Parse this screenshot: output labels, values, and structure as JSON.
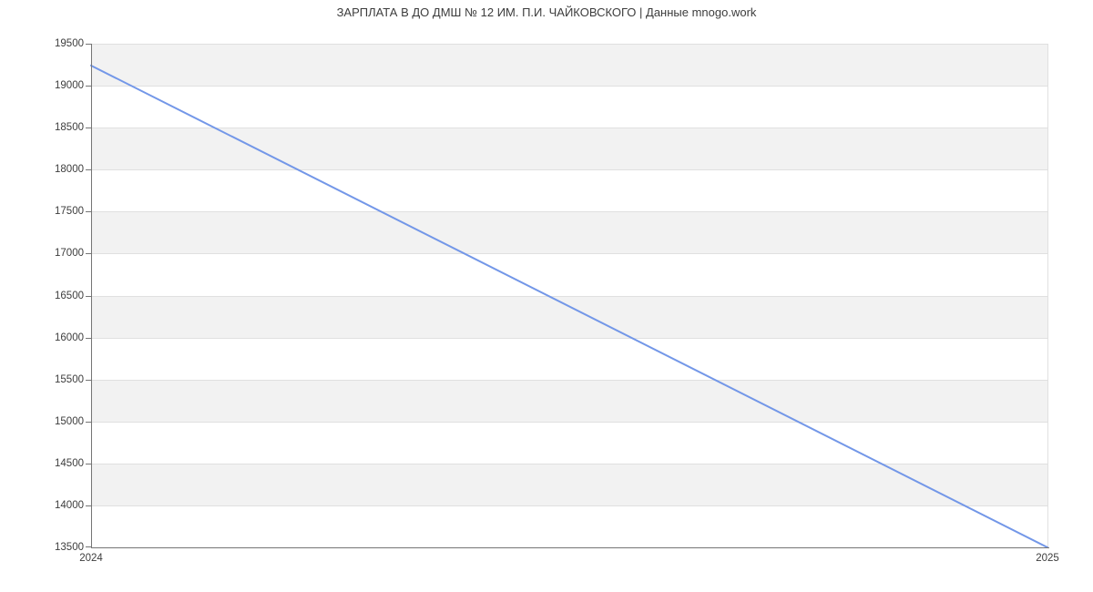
{
  "chart_data": {
    "type": "line",
    "title": "ЗАРПЛАТА В ДО ДМШ № 12 ИМ. П.И. ЧАЙКОВСКОГО | Данные mnogo.work",
    "x": [
      "2024",
      "2025"
    ],
    "series": [
      {
        "values": [
          19240,
          13500
        ]
      }
    ],
    "xlabel": "",
    "ylabel": "",
    "ylim": [
      13500,
      19500
    ],
    "yticks": [
      13500,
      14000,
      14500,
      15000,
      15500,
      16000,
      16500,
      17000,
      17500,
      18000,
      18500,
      19000,
      19500
    ],
    "grid": "horizontal",
    "legend": "none",
    "band_step": 500,
    "colors": {
      "line": "#7397e8",
      "band": "#f2f2f2",
      "grid": "#e0e0e0",
      "spine": "#757575",
      "tick_text": "#3d3d3d",
      "title_text": "#3c3c3c",
      "background": "#ffffff"
    }
  }
}
